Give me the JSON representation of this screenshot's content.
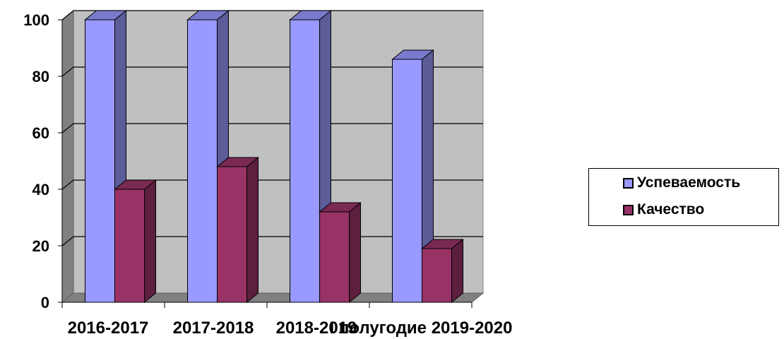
{
  "chart_data": {
    "type": "bar",
    "categories": [
      "2016-2017",
      "2017-2018",
      "2018-2019",
      "I полугодие 2019-2020"
    ],
    "series": [
      {
        "name": "Успеваемость",
        "values": [
          100,
          100,
          100,
          86
        ],
        "color": "#9999FF"
      },
      {
        "name": "Качество",
        "values": [
          40,
          48,
          32,
          19
        ],
        "color": "#993366"
      }
    ],
    "ylim": [
      0,
      100
    ],
    "yticks": [
      0,
      20,
      40,
      60,
      80,
      100
    ],
    "grid": true,
    "legend_position": "right",
    "style": "3d-clustered-column"
  }
}
